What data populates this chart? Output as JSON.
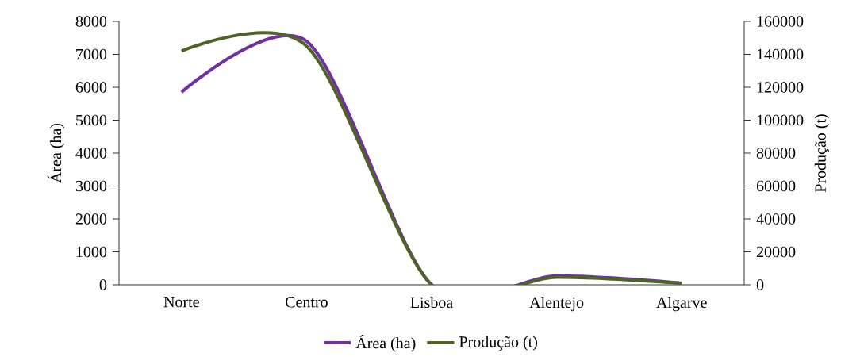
{
  "chart_data": {
    "type": "line",
    "categories": [
      "Norte",
      "Centro",
      "Lisboa",
      "Alentejo",
      "Algarve"
    ],
    "series": [
      {
        "name": "Área (ha)",
        "color": "#7030a0",
        "values": [
          5850,
          7400,
          0,
          270,
          50
        ]
      },
      {
        "name": "Produção (t)",
        "color": "#4f6228",
        "axis": "y2",
        "values": [
          142000,
          145000,
          0,
          4600,
          1000
        ]
      }
    ],
    "ylabel": "Área (ha)",
    "y2label": "Produção (t)",
    "ylim": [
      0,
      8000
    ],
    "yticks": [
      0,
      1000,
      2000,
      3000,
      4000,
      5000,
      6000,
      7000,
      8000
    ],
    "y2lim": [
      0,
      160000
    ],
    "y2ticks": [
      0,
      20000,
      40000,
      60000,
      80000,
      100000,
      120000,
      140000,
      160000
    ],
    "legend": "bottom"
  }
}
